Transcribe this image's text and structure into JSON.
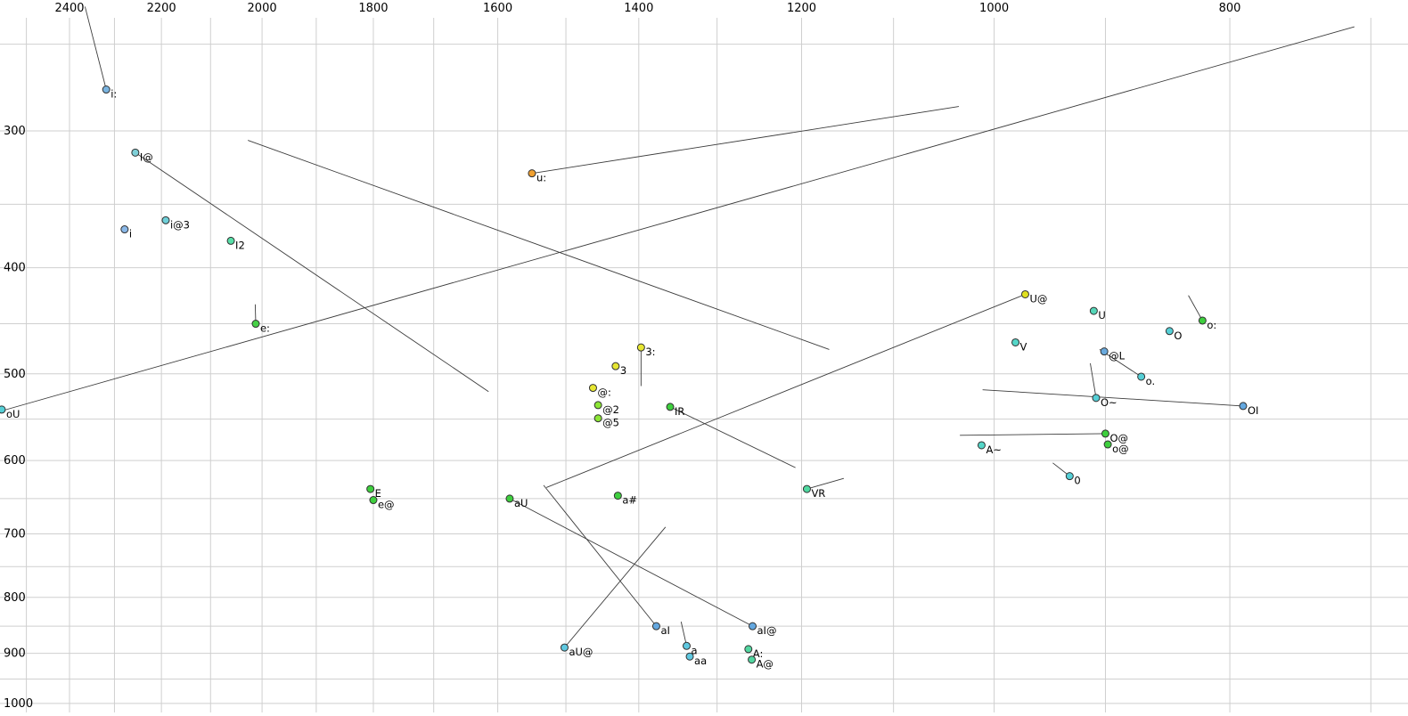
{
  "chart_data": {
    "type": "scatter",
    "title": "",
    "description": "Vowel formant scatter plot (F2 horizontal reversed log scale, F1 vertical log scale) with labeled phoneme points and thin trajectory tail lines",
    "x_axis": {
      "label": "",
      "scale": "log",
      "reversed": true,
      "tick_labels": [
        2400,
        2200,
        2000,
        1800,
        1600,
        1400,
        1200,
        1000,
        800
      ],
      "grid_from": 2500,
      "grid_to": 700,
      "grid_step": 100
    },
    "y_axis": {
      "label": "",
      "scale": "log",
      "reversed": false,
      "tick_labels": [
        300,
        400,
        500,
        600,
        700,
        800,
        900,
        1000
      ],
      "grid_from": 250,
      "grid_to": 1000,
      "grid_step": 50
    },
    "grid": {
      "color": "#cfcfcf",
      "line_width": 1
    },
    "segment_color": "#3c3c3c",
    "point_stroke": "#303030",
    "points": [
      {
        "label": "i:",
        "f2": 2318,
        "f1": 275,
        "color": "#7ab4e0"
      },
      {
        "label": "I@",
        "f2": 2255,
        "f1": 314,
        "color": "#7fd0d8"
      },
      {
        "label": "i",
        "f2": 2278,
        "f1": 369,
        "color": "#8ab8e8"
      },
      {
        "label": "i@3",
        "f2": 2191,
        "f1": 362,
        "color": "#6fcfd8"
      },
      {
        "label": "I2",
        "f2": 2060,
        "f1": 378,
        "color": "#58dfa8"
      },
      {
        "label": "e:",
        "f2": 2012,
        "f1": 450,
        "color": "#47d147"
      },
      {
        "label": "u:",
        "f2": 1549,
        "f1": 328,
        "color": "#f0a030"
      },
      {
        "label": "3:",
        "f2": 1397,
        "f1": 473,
        "color": "#e6e632"
      },
      {
        "label": "3",
        "f2": 1431,
        "f1": 492,
        "color": "#e6e632"
      },
      {
        "label": "@:",
        "f2": 1462,
        "f1": 515,
        "color": "#e6e632"
      },
      {
        "label": "@2",
        "f2": 1455,
        "f1": 534,
        "color": "#8ce636"
      },
      {
        "label": "@5",
        "f2": 1455,
        "f1": 549,
        "color": "#8ce636"
      },
      {
        "label": "IR",
        "f2": 1359,
        "f1": 536,
        "color": "#3ecf3e"
      },
      {
        "label": "E",
        "f2": 1805,
        "f1": 637,
        "color": "#3ecf3e"
      },
      {
        "label": "e@",
        "f2": 1800,
        "f1": 652,
        "color": "#3ecf3e"
      },
      {
        "label": "aU",
        "f2": 1582,
        "f1": 650,
        "color": "#3ecf3e"
      },
      {
        "label": "a#",
        "f2": 1428,
        "f1": 646,
        "color": "#3ecf3e"
      },
      {
        "label": "VR",
        "f2": 1194,
        "f1": 637,
        "color": "#4fd8a0"
      },
      {
        "label": "aI",
        "f2": 1377,
        "f1": 850,
        "color": "#64a8e0"
      },
      {
        "label": "aU@",
        "f2": 1502,
        "f1": 889,
        "color": "#5fc8e0"
      },
      {
        "label": "a",
        "f2": 1338,
        "f1": 886,
        "color": "#5fc8e0"
      },
      {
        "label": "aa",
        "f2": 1334,
        "f1": 906,
        "color": "#5fc8e0"
      },
      {
        "label": "aI@",
        "f2": 1257,
        "f1": 850,
        "color": "#64a8e0"
      },
      {
        "label": "A:",
        "f2": 1262,
        "f1": 892,
        "color": "#52d6a0"
      },
      {
        "label": "A@",
        "f2": 1258,
        "f1": 912,
        "color": "#52d6a0"
      },
      {
        "label": "U@",
        "f2": 971,
        "f1": 423,
        "color": "#e0e020"
      },
      {
        "label": "U",
        "f2": 910,
        "f1": 438,
        "color": "#55d6b8"
      },
      {
        "label": "V",
        "f2": 980,
        "f1": 468,
        "color": "#55d6c8"
      },
      {
        "label": "@L",
        "f2": 901,
        "f1": 477,
        "color": "#6aaade"
      },
      {
        "label": "O",
        "f2": 847,
        "f1": 457,
        "color": "#55cfd6"
      },
      {
        "label": "o:",
        "f2": 821,
        "f1": 447,
        "color": "#3ecf3e"
      },
      {
        "label": "O~",
        "f2": 908,
        "f1": 526,
        "color": "#55cfd6"
      },
      {
        "label": "o.",
        "f2": 870,
        "f1": 503,
        "color": "#55cfd6"
      },
      {
        "label": "OI",
        "f2": 790,
        "f1": 535,
        "color": "#64a8e0"
      },
      {
        "label": "O@",
        "f2": 900,
        "f1": 567,
        "color": "#3ecf3e"
      },
      {
        "label": "o@",
        "f2": 898,
        "f1": 580,
        "color": "#3ecf3e"
      },
      {
        "label": "A~",
        "f2": 1012,
        "f1": 581,
        "color": "#55d6c8"
      },
      {
        "label": "0",
        "f2": 931,
        "f1": 620,
        "color": "#55cfd6"
      },
      {
        "label": "oU",
        "f2": 2559,
        "f1": 539,
        "color": "#55cfd6"
      }
    ],
    "segments": [
      {
        "from": [
          2365,
          231
        ],
        "to": [
          2318,
          275
        ]
      },
      {
        "from": [
          2255,
          314
        ],
        "to": [
          1614,
          519
        ]
      },
      {
        "from": [
          1549,
          328
        ],
        "to": [
          1034,
          285
        ]
      },
      {
        "from": [
          2563,
          541
        ],
        "to": [
          711,
          241
        ]
      },
      {
        "from": [
          2027,
          306
        ],
        "to": [
          1169,
          475
        ]
      },
      {
        "from": [
          1528,
          635
        ],
        "to": [
          971,
          423
        ]
      },
      {
        "from": [
          1582,
          650
        ],
        "to": [
          1257,
          850
        ]
      },
      {
        "from": [
          1532,
          632
        ],
        "to": [
          1377,
          850
        ]
      },
      {
        "from": [
          1365,
          690
        ],
        "to": [
          1502,
          889
        ]
      },
      {
        "from": [
          1359,
          536
        ],
        "to": [
          1207,
          609
        ]
      },
      {
        "from": [
          1194,
          637
        ],
        "to": [
          1153,
          623
        ]
      },
      {
        "from": [
          1397,
          473
        ],
        "to": [
          1397,
          513
        ]
      },
      {
        "from": [
          2013,
          432
        ],
        "to": [
          2012,
          450
        ]
      },
      {
        "from": [
          1345,
          842
        ],
        "to": [
          1338,
          886
        ]
      },
      {
        "from": [
          832,
          424
        ],
        "to": [
          821,
          447
        ]
      },
      {
        "from": [
          913,
          489
        ],
        "to": [
          908,
          526
        ]
      },
      {
        "from": [
          946,
          603
        ],
        "to": [
          931,
          620
        ]
      },
      {
        "from": [
          1033,
          569
        ],
        "to": [
          900,
          567
        ]
      },
      {
        "from": [
          1011,
          517
        ],
        "to": [
          790,
          535
        ]
      },
      {
        "from": [
          905,
          475
        ],
        "to": [
          870,
          503
        ]
      }
    ]
  }
}
